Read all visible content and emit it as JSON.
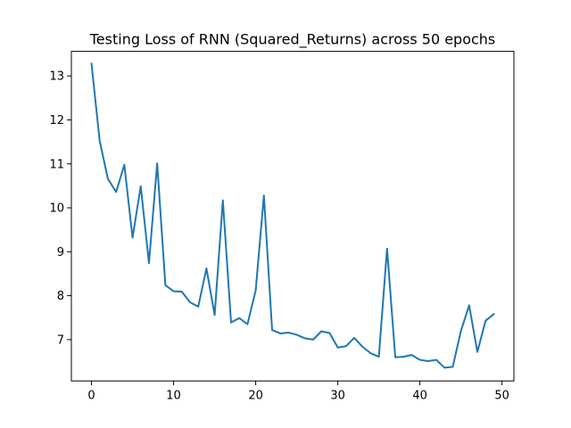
{
  "chart_data": {
    "type": "line",
    "title": "Testing Loss of RNN (Squared_Returns) across 50 epochs",
    "xlabel": "",
    "ylabel": "",
    "xlim": [
      -2.45,
      51.45
    ],
    "ylim": [
      6.06,
      13.56
    ],
    "x_ticks": [
      0,
      10,
      20,
      30,
      40,
      50
    ],
    "y_ticks": [
      7,
      8,
      9,
      10,
      11,
      12,
      13
    ],
    "grid": false,
    "line_color": "#1f77b4",
    "series": [
      {
        "x": [
          0,
          1,
          2,
          3,
          4,
          5,
          6,
          7,
          8,
          9,
          10,
          11,
          12,
          13,
          14,
          15,
          16,
          17,
          18,
          19,
          20,
          21,
          22,
          23,
          24,
          25,
          26,
          27,
          28,
          29,
          30,
          31,
          32,
          33,
          34,
          35,
          36,
          37,
          38,
          39,
          40,
          41,
          42,
          43,
          44,
          45,
          46,
          47,
          48,
          49
        ],
        "values": [
          13.28,
          11.52,
          10.66,
          10.36,
          10.98,
          9.32,
          10.49,
          8.74,
          11.01,
          8.24,
          8.1,
          8.09,
          7.85,
          7.75,
          8.62,
          7.56,
          10.17,
          7.39,
          7.49,
          7.35,
          8.12,
          10.28,
          7.22,
          7.14,
          7.16,
          7.11,
          7.03,
          7.0,
          7.19,
          7.15,
          6.82,
          6.85,
          7.04,
          6.84,
          6.69,
          6.61,
          9.07,
          6.6,
          6.61,
          6.65,
          6.54,
          6.51,
          6.54,
          6.36,
          6.38,
          7.2,
          7.78,
          6.72,
          7.43,
          7.58
        ]
      }
    ]
  }
}
